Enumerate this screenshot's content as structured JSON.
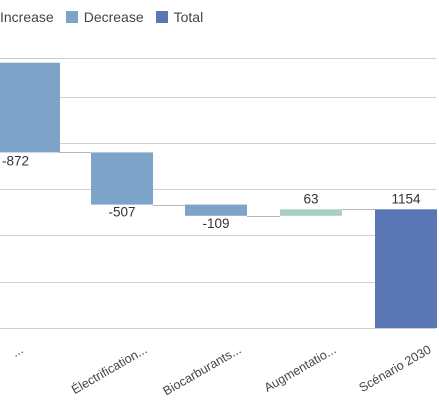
{
  "legend": [
    {
      "label": "Increase",
      "color": "#a9cfc1",
      "swatch": false
    },
    {
      "label": "Decrease",
      "color": "#7ea3c9",
      "swatch": true
    },
    {
      "label": "Total",
      "color": "#5b76b4",
      "swatch": true
    }
  ],
  "chart_data": {
    "type": "waterfall",
    "title": "",
    "xlabel": "",
    "ylabel": "",
    "categories": [
      "...",
      "Électrification...",
      "Biocarburants...",
      "Augmentatio...",
      "Scénario 2030"
    ],
    "values": [
      -872,
      -507,
      -109,
      63,
      1154
    ],
    "kinds": [
      "decrease",
      "decrease",
      "decrease",
      "increase",
      "total"
    ],
    "data_labels": [
      "-872",
      "-507",
      "-109",
      "63",
      "1154"
    ],
    "ylim": [
      0,
      2625
    ],
    "grid": true,
    "legend_position": "top-left",
    "colors": {
      "increase": "#a9cfc1",
      "decrease": "#7ea3c9",
      "total": "#5b76b4",
      "grid": "#cfcfcf",
      "connector": "#b5b5b5"
    }
  }
}
